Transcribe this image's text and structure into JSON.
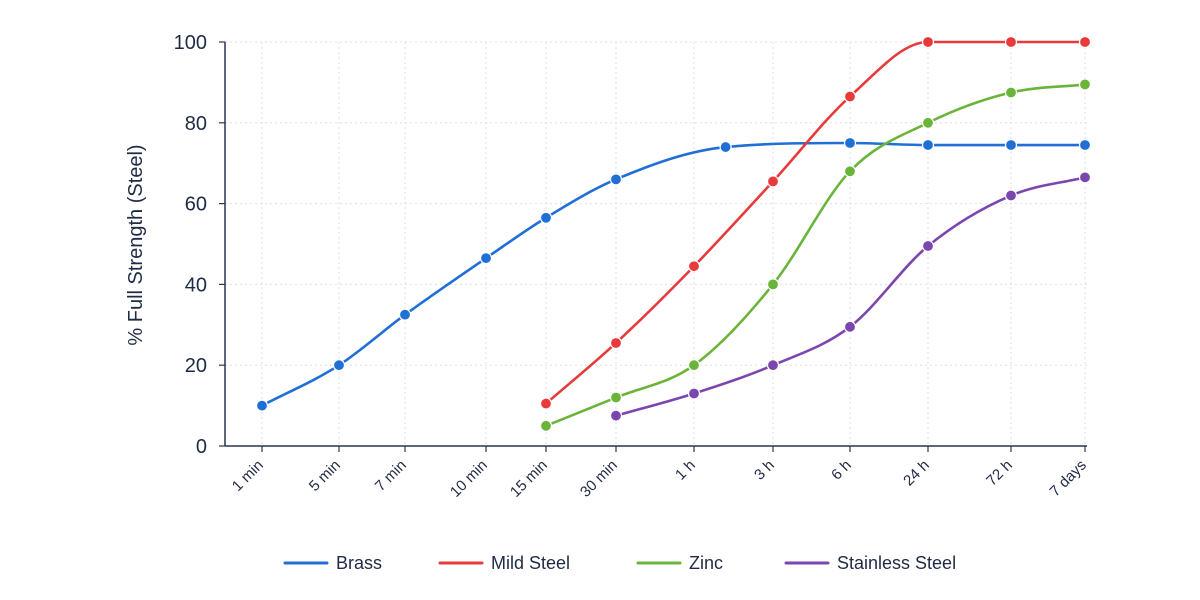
{
  "chart_data": {
    "type": "line",
    "title": "",
    "xlabel": "",
    "ylabel": "% Full Strength (Steel)",
    "ylim": [
      0,
      100
    ],
    "yticks": [
      "0",
      "20",
      "40",
      "60",
      "80",
      "100"
    ],
    "grid": true,
    "legend_position": "bottom",
    "categories": [
      "1 min",
      "5 min",
      "7 min",
      "10 min",
      "15 min",
      "30 min",
      "1 h",
      "3 h",
      "6 h",
      "24 h",
      "72 h",
      "7 days"
    ],
    "series": [
      {
        "name": "Brass",
        "color": "#1f6fd6",
        "points": [
          {
            "x": "1 min",
            "y": 10
          },
          {
            "x": "5 min",
            "y": 20
          },
          {
            "x": "7 min",
            "y": 32.5
          },
          {
            "x": "10 min",
            "y": 46.5
          },
          {
            "x": "15 min",
            "y": 56.5
          },
          {
            "x": "30 min",
            "y": 66
          },
          {
            "x": "1 h",
            "y": 74,
            "offset": 0.4
          },
          {
            "x": "6 h",
            "y": 75
          },
          {
            "x": "24 h",
            "y": 74.5
          },
          {
            "x": "72 h",
            "y": 74.5
          },
          {
            "x": "7 days",
            "y": 74.5
          }
        ]
      },
      {
        "name": "Mild Steel",
        "color": "#e83a3a",
        "points": [
          {
            "x": "15 min",
            "y": 10.5
          },
          {
            "x": "30 min",
            "y": 25.5
          },
          {
            "x": "1 h",
            "y": 44.5
          },
          {
            "x": "3 h",
            "y": 65.5
          },
          {
            "x": "6 h",
            "y": 86.5
          },
          {
            "x": "24 h",
            "y": 100
          },
          {
            "x": "72 h",
            "y": 100
          },
          {
            "x": "7 days",
            "y": 100
          }
        ]
      },
      {
        "name": "Zinc",
        "color": "#6ab43a",
        "points": [
          {
            "x": "15 min",
            "y": 5
          },
          {
            "x": "30 min",
            "y": 12
          },
          {
            "x": "1 h",
            "y": 20
          },
          {
            "x": "3 h",
            "y": 40
          },
          {
            "x": "6 h",
            "y": 68
          },
          {
            "x": "24 h",
            "y": 80
          },
          {
            "x": "72 h",
            "y": 87.5
          },
          {
            "x": "7 days",
            "y": 89.5
          }
        ]
      },
      {
        "name": "Stainless Steel",
        "color": "#7b46b0",
        "points": [
          {
            "x": "30 min",
            "y": 7.5
          },
          {
            "x": "1 h",
            "y": 13
          },
          {
            "x": "3 h",
            "y": 20
          },
          {
            "x": "6 h",
            "y": 29.5
          },
          {
            "x": "24 h",
            "y": 49.5
          },
          {
            "x": "72 h",
            "y": 62
          },
          {
            "x": "7 days",
            "y": 66.5
          }
        ]
      }
    ]
  }
}
